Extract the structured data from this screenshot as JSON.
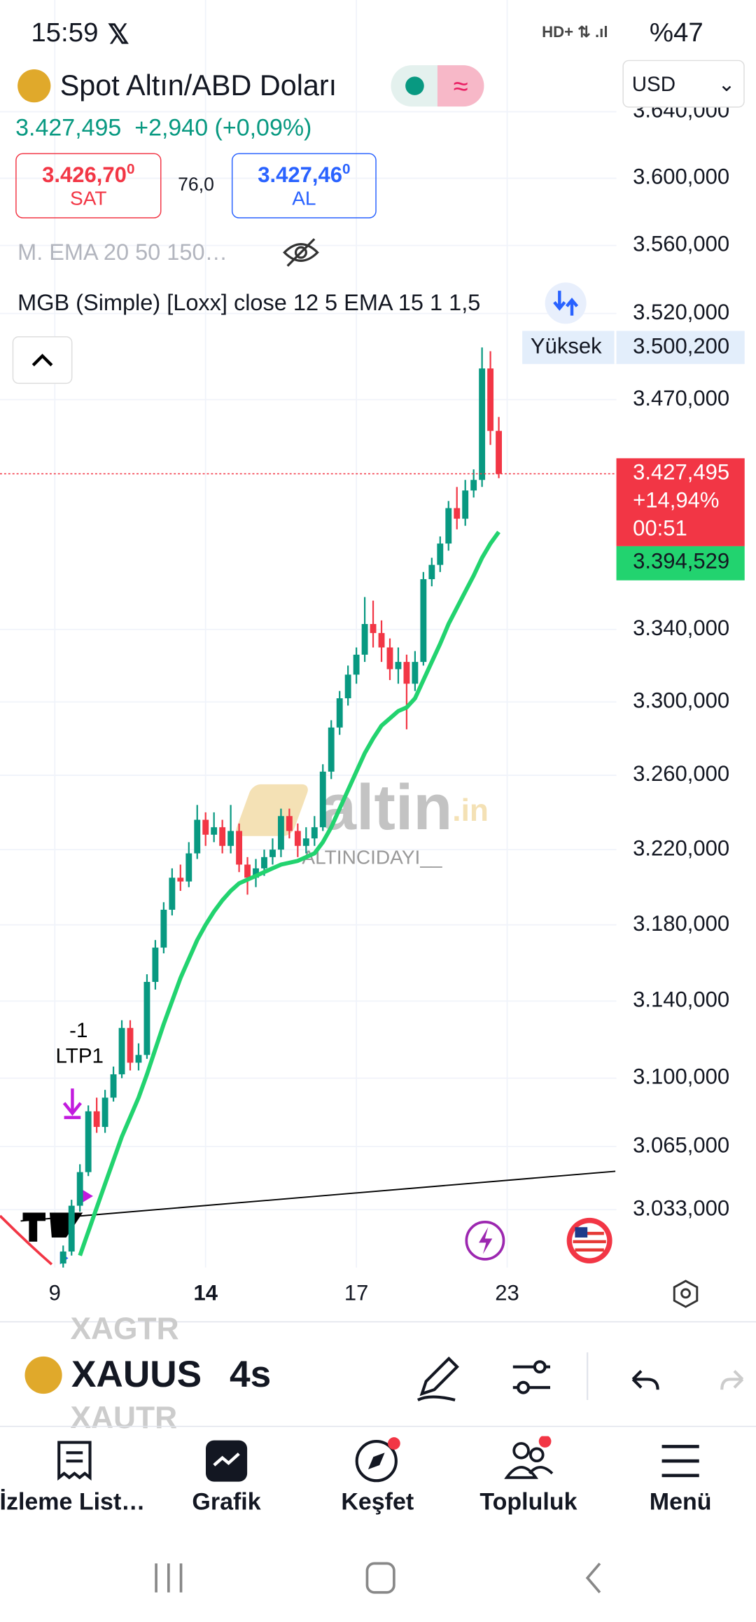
{
  "status_bar": {
    "time": "15:59",
    "battery": "%47"
  },
  "header": {
    "symbol_name": "Spot Altın/ABD Doları",
    "currency": "USD",
    "price": "3.427,495",
    "change": "+2,940 (+0,09%)",
    "sell": {
      "price": "3.426,70",
      "price_last_digit": "0",
      "label": "SAT"
    },
    "spread": "76,0",
    "buy": {
      "price": "3.427,46",
      "price_last_digit": "0",
      "label": "AL"
    },
    "indicators": [
      "M. EMA 20 50 150…",
      "MGB (Simple) [Loxx] close 12 5 EMA 15 1 1,5"
    ]
  },
  "chart_data": {
    "type": "candlestick",
    "log_scale": true,
    "grid": true,
    "up_color": "#089981",
    "down_color": "#f23645",
    "categories": [
      "9",
      null,
      null,
      null,
      null,
      null,
      null,
      null,
      null,
      null,
      null,
      null,
      null,
      null,
      null,
      null,
      null,
      null,
      "14",
      null,
      null,
      null,
      null,
      null,
      null,
      null,
      null,
      null,
      null,
      null,
      null,
      null,
      null,
      null,
      null,
      null,
      "17",
      null,
      null,
      null,
      null,
      null,
      null,
      null,
      null,
      null,
      null,
      null,
      null,
      null,
      null,
      null,
      null,
      null,
      "23"
    ],
    "open": [
      null,
      3006,
      3012,
      3035,
      3052,
      3083,
      3075,
      3090,
      3102,
      3126,
      3108,
      3112,
      3150,
      3168,
      3188,
      3205,
      3203,
      3218,
      3236,
      3228,
      3232,
      3222,
      3230,
      3212,
      3205,
      3210,
      3216,
      3220,
      3238,
      3230,
      3222,
      3226,
      3232,
      3262,
      3286,
      3302,
      3315,
      3326,
      3343,
      3338,
      3330,
      3318,
      3322,
      3310,
      3322,
      3368,
      3376,
      3388,
      3408,
      3402,
      3418,
      3424,
      3488,
      3452,
      null
    ],
    "high": [
      null,
      3015,
      3038,
      3056,
      3086,
      3090,
      3094,
      3106,
      3130,
      3130,
      3118,
      3154,
      3172,
      3192,
      3210,
      3212,
      3224,
      3244,
      3240,
      3240,
      3236,
      3244,
      3234,
      3216,
      3215,
      3220,
      3226,
      3242,
      3242,
      3234,
      3232,
      3238,
      3266,
      3290,
      3306,
      3320,
      3330,
      3358,
      3356,
      3345,
      3335,
      3330,
      3326,
      3328,
      3372,
      3380,
      3392,
      3412,
      3420,
      3424,
      3430,
      3500.2,
      3498,
      3460,
      null
    ],
    "low": [
      null,
      3004,
      3010,
      3032,
      3050,
      3072,
      3072,
      3088,
      3100,
      3104,
      3104,
      3110,
      3146,
      3165,
      3185,
      3198,
      3200,
      3215,
      3222,
      3224,
      3218,
      3218,
      3208,
      3196,
      3200,
      3206,
      3212,
      3216,
      3226,
      3216,
      3218,
      3222,
      3230,
      3258,
      3282,
      3298,
      3310,
      3322,
      3330,
      3322,
      3312,
      3310,
      3285,
      3306,
      3320,
      3364,
      3372,
      3384,
      3396,
      3398,
      3414,
      3420,
      3444,
      3425,
      null
    ],
    "close": [
      null,
      3012,
      3035,
      3052,
      3083,
      3075,
      3090,
      3102,
      3126,
      3108,
      3112,
      3150,
      3168,
      3188,
      3205,
      3203,
      3218,
      3236,
      3228,
      3232,
      3222,
      3230,
      3212,
      3205,
      3210,
      3216,
      3220,
      3238,
      3230,
      3222,
      3226,
      3232,
      3262,
      3286,
      3302,
      3315,
      3326,
      3343,
      3338,
      3330,
      3318,
      3322,
      3310,
      3322,
      3368,
      3376,
      3388,
      3408,
      3402,
      3418,
      3424,
      3488,
      3452,
      3427.495,
      null
    ],
    "ema": {
      "color": "#22d36f",
      "values": [
        null,
        null,
        null,
        3010,
        3022,
        3034,
        3046,
        3058,
        3070,
        3080,
        3090,
        3102,
        3115,
        3128,
        3140,
        3152,
        3162,
        3172,
        3180,
        3187,
        3193,
        3198,
        3202,
        3204,
        3206,
        3208,
        3210,
        3212,
        3213,
        3214,
        3216,
        3218,
        3224,
        3232,
        3242,
        3252,
        3262,
        3272,
        3280,
        3287,
        3291,
        3295,
        3297,
        3302,
        3312,
        3322,
        3332,
        3343,
        3352,
        3361,
        3370,
        3380,
        3388,
        3394.529,
        null
      ]
    },
    "ylim": [
      3004,
      3640
    ],
    "yticks": [
      {
        "value": 3640,
        "label": "3.640,000"
      },
      {
        "value": 3600,
        "label": "3.600,000"
      },
      {
        "value": 3560,
        "label": "3.560,000"
      },
      {
        "value": 3520,
        "label": "3.520,000"
      },
      {
        "value": 3470,
        "label": "3.470,000"
      },
      {
        "value": 3340,
        "label": "3.340,000"
      },
      {
        "value": 3300,
        "label": "3.300,000"
      },
      {
        "value": 3260,
        "label": "3.260,000"
      },
      {
        "value": 3220,
        "label": "3.220,000"
      },
      {
        "value": 3180,
        "label": "3.180,000"
      },
      {
        "value": 3140,
        "label": "3.140,000"
      },
      {
        "value": 3100,
        "label": "3.100,000"
      },
      {
        "value": 3065,
        "label": "3.065,000"
      },
      {
        "value": 3033,
        "label": "3.033,000"
      }
    ],
    "high_marker": {
      "text": "Yüksek",
      "value": 3500.2,
      "label": "3.500,200"
    },
    "last_price": {
      "value": 3427.495,
      "label": "3.427,495",
      "change": "+14,94%",
      "countdown": "00:51"
    },
    "ema_last": {
      "value": 3394.529,
      "label": "3.394,529"
    },
    "annotations": [
      "-1",
      "LTP1"
    ],
    "watermark": {
      "brand": "altin",
      "suffix": ".in",
      "author": "ALTINCIDAYI__"
    }
  },
  "toolbar": {
    "symbol": "XAUUS",
    "symbol_prev": "XAGTR",
    "symbol_next": "XAUTR",
    "interval": "4s"
  },
  "nav": [
    "İzleme List…",
    "Grafik",
    "Keşfet",
    "Topluluk",
    "Menü"
  ]
}
